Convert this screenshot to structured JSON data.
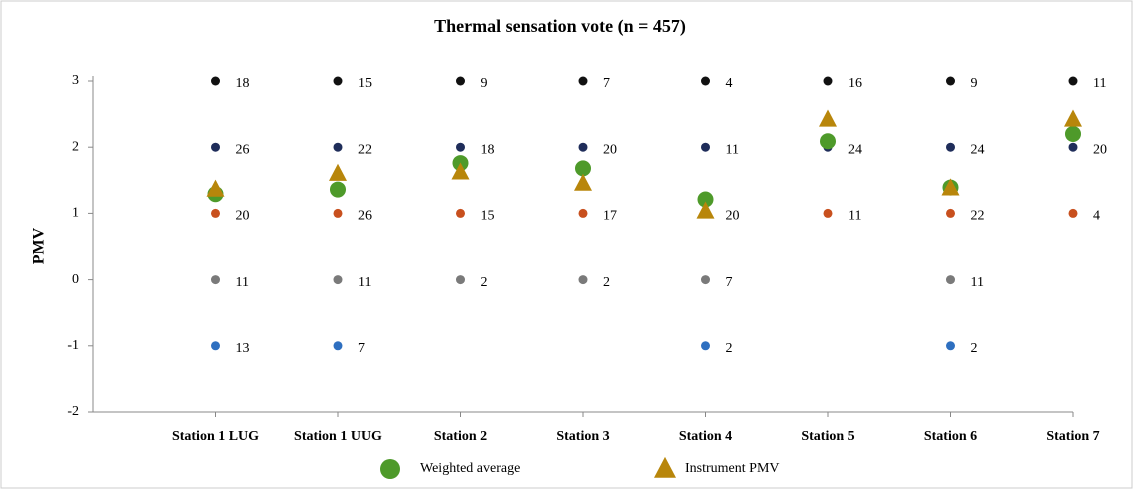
{
  "chart_data": {
    "type": "scatter",
    "title": "Thermal sensation vote (n = 457)",
    "y_label": "PMV",
    "categories": [
      "Station 1 LUG",
      "Station 1 UUG",
      "Station 2",
      "Station 3",
      "Station 4",
      "Station 5",
      "Station 6",
      "Station 7"
    ],
    "ylim": [
      -2,
      3
    ],
    "yticks": [
      -2,
      -1,
      0,
      1,
      2,
      3
    ],
    "vote_levels": [
      {
        "level": 3,
        "color": "#111111",
        "counts": [
          18,
          15,
          9,
          7,
          4,
          16,
          9,
          11
        ]
      },
      {
        "level": 2,
        "color": "#1f2d5a",
        "counts": [
          26,
          22,
          18,
          20,
          11,
          24,
          24,
          20
        ]
      },
      {
        "level": 1,
        "color": "#c8501e",
        "counts": [
          20,
          26,
          15,
          17,
          20,
          11,
          22,
          4
        ]
      },
      {
        "level": 0,
        "color": "#7a7a7a",
        "counts": [
          11,
          11,
          2,
          2,
          7,
          null,
          11,
          null
        ]
      },
      {
        "level": -1,
        "color": "#2e6fc0",
        "counts": [
          13,
          7,
          null,
          null,
          2,
          null,
          2,
          null
        ]
      }
    ],
    "series": [
      {
        "name": "Weighted average",
        "color": "#4e9a2a",
        "marker": "circle",
        "values": [
          1.29,
          1.36,
          1.76,
          1.68,
          1.21,
          2.09,
          1.39,
          2.2
        ]
      },
      {
        "name": "Instrument PMV",
        "color": "#b8860b",
        "marker": "triangle",
        "values": [
          1.36,
          1.6,
          1.62,
          1.45,
          1.03,
          2.42,
          1.38,
          2.42
        ]
      }
    ]
  }
}
